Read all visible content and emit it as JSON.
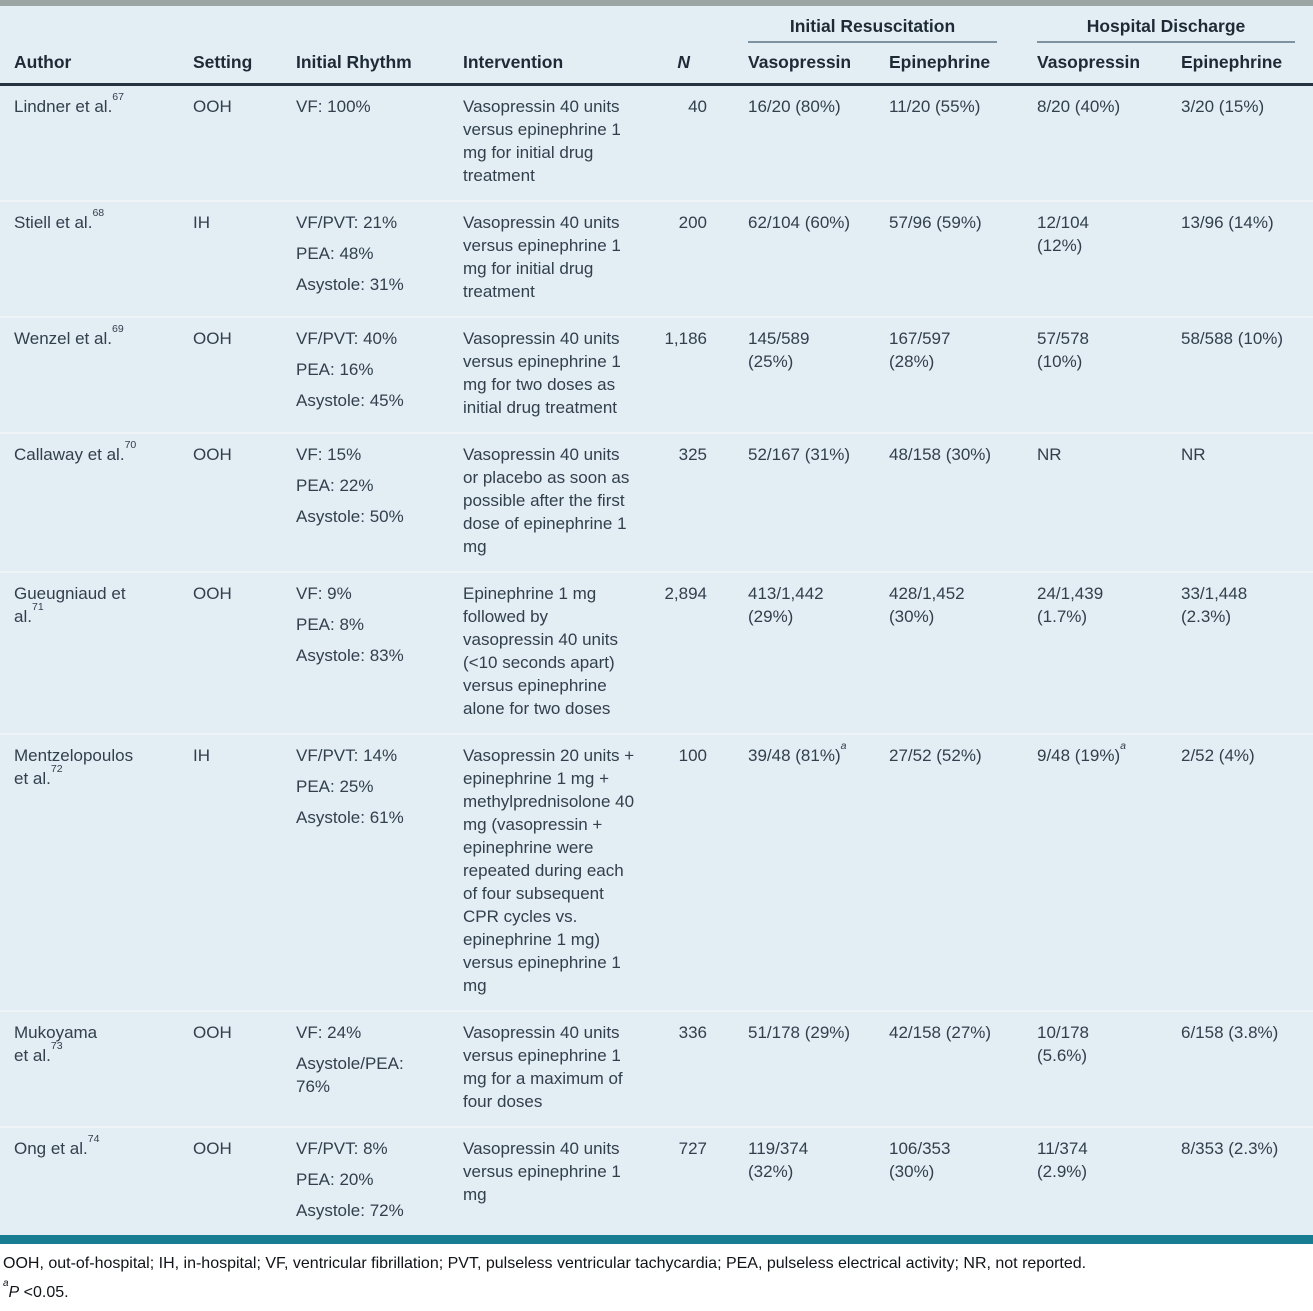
{
  "table": {
    "group_headers": [
      {
        "label": "Initial Resuscitation"
      },
      {
        "label": "Hospital Discharge"
      }
    ],
    "columns": [
      "Author",
      "Setting",
      "Initial Rhythm",
      "Intervention",
      "N",
      "Vasopressin",
      "Epinephrine",
      "Vasopressin",
      "Epinephrine"
    ],
    "rows": [
      {
        "author_lines": [
          "Lindner et al."
        ],
        "ref": "67",
        "setting": "OOH",
        "rhythm": [
          "VF: 100%"
        ],
        "intervention": "Vasopressin 40 units versus epinephrine 1 mg for initial drug treatment",
        "n": "40",
        "initial_resuscitation": {
          "vasopressin": {
            "lines": [
              "16/20 (80%)"
            ]
          },
          "epinephrine": {
            "lines": [
              "11/20 (55%)"
            ]
          }
        },
        "hospital_discharge": {
          "vasopressin": {
            "lines": [
              "8/20 (40%)"
            ]
          },
          "epinephrine": {
            "lines": [
              "3/20 (15%)"
            ]
          }
        }
      },
      {
        "author_lines": [
          "Stiell et al."
        ],
        "ref": "68",
        "setting": "IH",
        "rhythm": [
          "VF/PVT: 21%",
          "PEA: 48%",
          "Asystole: 31%"
        ],
        "intervention": "Vasopressin 40 units versus epinephrine 1 mg for initial drug treatment",
        "n": "200",
        "initial_resuscitation": {
          "vasopressin": {
            "lines": [
              "62/104 (60%)"
            ]
          },
          "epinephrine": {
            "lines": [
              "57/96 (59%)"
            ]
          }
        },
        "hospital_discharge": {
          "vasopressin": {
            "lines": [
              "12/104",
              "(12%)"
            ]
          },
          "epinephrine": {
            "lines": [
              "13/96 (14%)"
            ]
          }
        }
      },
      {
        "author_lines": [
          "Wenzel et al."
        ],
        "ref": "69",
        "setting": "OOH",
        "rhythm": [
          "VF/PVT: 40%",
          "PEA: 16%",
          "Asystole: 45%"
        ],
        "intervention": "Vasopressin 40 units versus epinephrine 1 mg for two doses as initial drug treatment",
        "n": "1,186",
        "initial_resuscitation": {
          "vasopressin": {
            "lines": [
              "145/589",
              "(25%)"
            ]
          },
          "epinephrine": {
            "lines": [
              "167/597",
              "(28%)"
            ]
          }
        },
        "hospital_discharge": {
          "vasopressin": {
            "lines": [
              "57/578",
              "(10%)"
            ]
          },
          "epinephrine": {
            "lines": [
              "58/588 (10%)"
            ]
          }
        }
      },
      {
        "author_lines": [
          "Callaway et al."
        ],
        "ref": "70",
        "setting": "OOH",
        "rhythm": [
          "VF: 15%",
          "PEA: 22%",
          "Asystole: 50%"
        ],
        "intervention": "Vasopressin 40 units or placebo as soon as possible after the first dose of epinephrine 1 mg",
        "n": "325",
        "initial_resuscitation": {
          "vasopressin": {
            "lines": [
              "52/167 (31%)"
            ]
          },
          "epinephrine": {
            "lines": [
              "48/158 (30%)"
            ]
          }
        },
        "hospital_discharge": {
          "vasopressin": {
            "lines": [
              "NR"
            ]
          },
          "epinephrine": {
            "lines": [
              "NR"
            ]
          }
        }
      },
      {
        "author_lines": [
          "Gueugniaud et",
          "al."
        ],
        "ref": "71",
        "setting": "OOH",
        "rhythm": [
          "VF: 9%",
          "PEA: 8%",
          "Asystole: 83%"
        ],
        "intervention": "Epinephrine 1 mg followed by vasopressin 40 units (<10 seconds apart) versus epinephrine alone for two doses",
        "n": "2,894",
        "initial_resuscitation": {
          "vasopressin": {
            "lines": [
              "413/1,442",
              "(29%)"
            ]
          },
          "epinephrine": {
            "lines": [
              "428/1,452",
              "(30%)"
            ]
          }
        },
        "hospital_discharge": {
          "vasopressin": {
            "lines": [
              "24/1,439",
              "(1.7%)"
            ]
          },
          "epinephrine": {
            "lines": [
              "33/1,448",
              "(2.3%)"
            ]
          }
        }
      },
      {
        "author_lines": [
          "Mentzelopoulos",
          "et al."
        ],
        "ref": "72",
        "setting": "IH",
        "rhythm": [
          "VF/PVT: 14%",
          "PEA: 25%",
          "Asystole: 61%"
        ],
        "intervention": "Vasopressin 20 units + epinephrine 1 mg + methylprednisolone 40 mg (vasopressin + epinephrine were repeated during each of four subsequent CPR cycles vs. epinephrine 1 mg) versus epinephrine 1 mg",
        "n": "100",
        "initial_resuscitation": {
          "vasopressin": {
            "lines": [
              "39/48 (81%)"
            ],
            "sup": "a"
          },
          "epinephrine": {
            "lines": [
              "27/52 (52%)"
            ]
          }
        },
        "hospital_discharge": {
          "vasopressin": {
            "lines": [
              "9/48 (19%)"
            ],
            "sup": "a"
          },
          "epinephrine": {
            "lines": [
              "2/52 (4%)"
            ]
          }
        }
      },
      {
        "author_lines": [
          "Mukoyama",
          "et al."
        ],
        "ref": "73",
        "setting": "OOH",
        "rhythm": [
          "VF: 24%",
          "Asystole/PEA: 76%"
        ],
        "intervention": "Vasopressin 40 units versus epinephrine 1 mg for a maximum of four doses",
        "n": "336",
        "initial_resuscitation": {
          "vasopressin": {
            "lines": [
              "51/178 (29%)"
            ]
          },
          "epinephrine": {
            "lines": [
              "42/158 (27%)"
            ]
          }
        },
        "hospital_discharge": {
          "vasopressin": {
            "lines": [
              "10/178",
              "(5.6%)"
            ]
          },
          "epinephrine": {
            "lines": [
              "6/158 (3.8%)"
            ]
          }
        }
      },
      {
        "author_lines": [
          "Ong et al."
        ],
        "ref": "74",
        "setting": "OOH",
        "rhythm": [
          "VF/PVT: 8%",
          "PEA: 20%",
          "Asystole: 72%"
        ],
        "intervention": "Vasopressin 40 units versus epinephrine 1 mg",
        "n": "727",
        "initial_resuscitation": {
          "vasopressin": {
            "lines": [
              "119/374",
              "(32%)"
            ]
          },
          "epinephrine": {
            "lines": [
              "106/353",
              "(30%)"
            ]
          }
        },
        "hospital_discharge": {
          "vasopressin": {
            "lines": [
              "11/374",
              "(2.9%)"
            ]
          },
          "epinephrine": {
            "lines": [
              "8/353 (2.3%)"
            ]
          }
        }
      }
    ]
  },
  "footnotes": {
    "abbreviations": "OOH, out-of-hospital; IH, in-hospital; VF, ventricular fibrillation; PVT, pulseless ventricular tachycardia; PEA, pulseless electrical activity; NR, not reported.",
    "significance": {
      "marker": "a",
      "p_symbol": "P",
      "rest": " <0.05."
    }
  },
  "colors": {
    "accent_teal": "#187d92",
    "top_rule": "#9aa5a4",
    "table_background": "#e3edf4",
    "header_rule": "#233440",
    "group_rule": "#7f92a0",
    "row_divider": "#eef4f8",
    "body_text": "#32404d",
    "header_text": "#1e2b36"
  }
}
